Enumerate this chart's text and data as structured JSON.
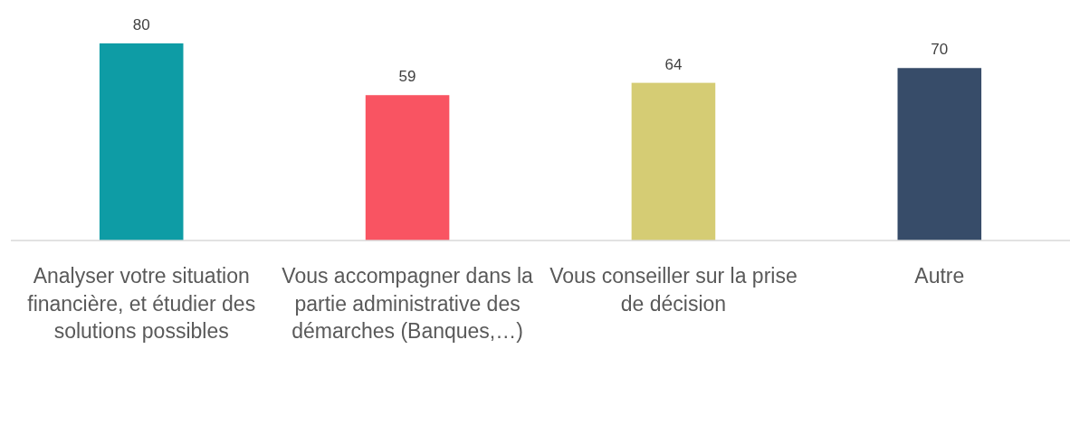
{
  "chart_data": {
    "type": "bar",
    "categories": [
      "Analyser votre situation financière, et étudier des solutions possibles",
      "Vous accompagner dans la partie administrative des démarches (Banques,…)",
      "Vous conseiller sur la prise de décision",
      "Autre"
    ],
    "values": [
      80,
      59,
      64,
      70
    ],
    "colors": [
      "#0e9ca5",
      "#f95462",
      "#d5cc74",
      "#374c69"
    ],
    "data_labels": true
  }
}
